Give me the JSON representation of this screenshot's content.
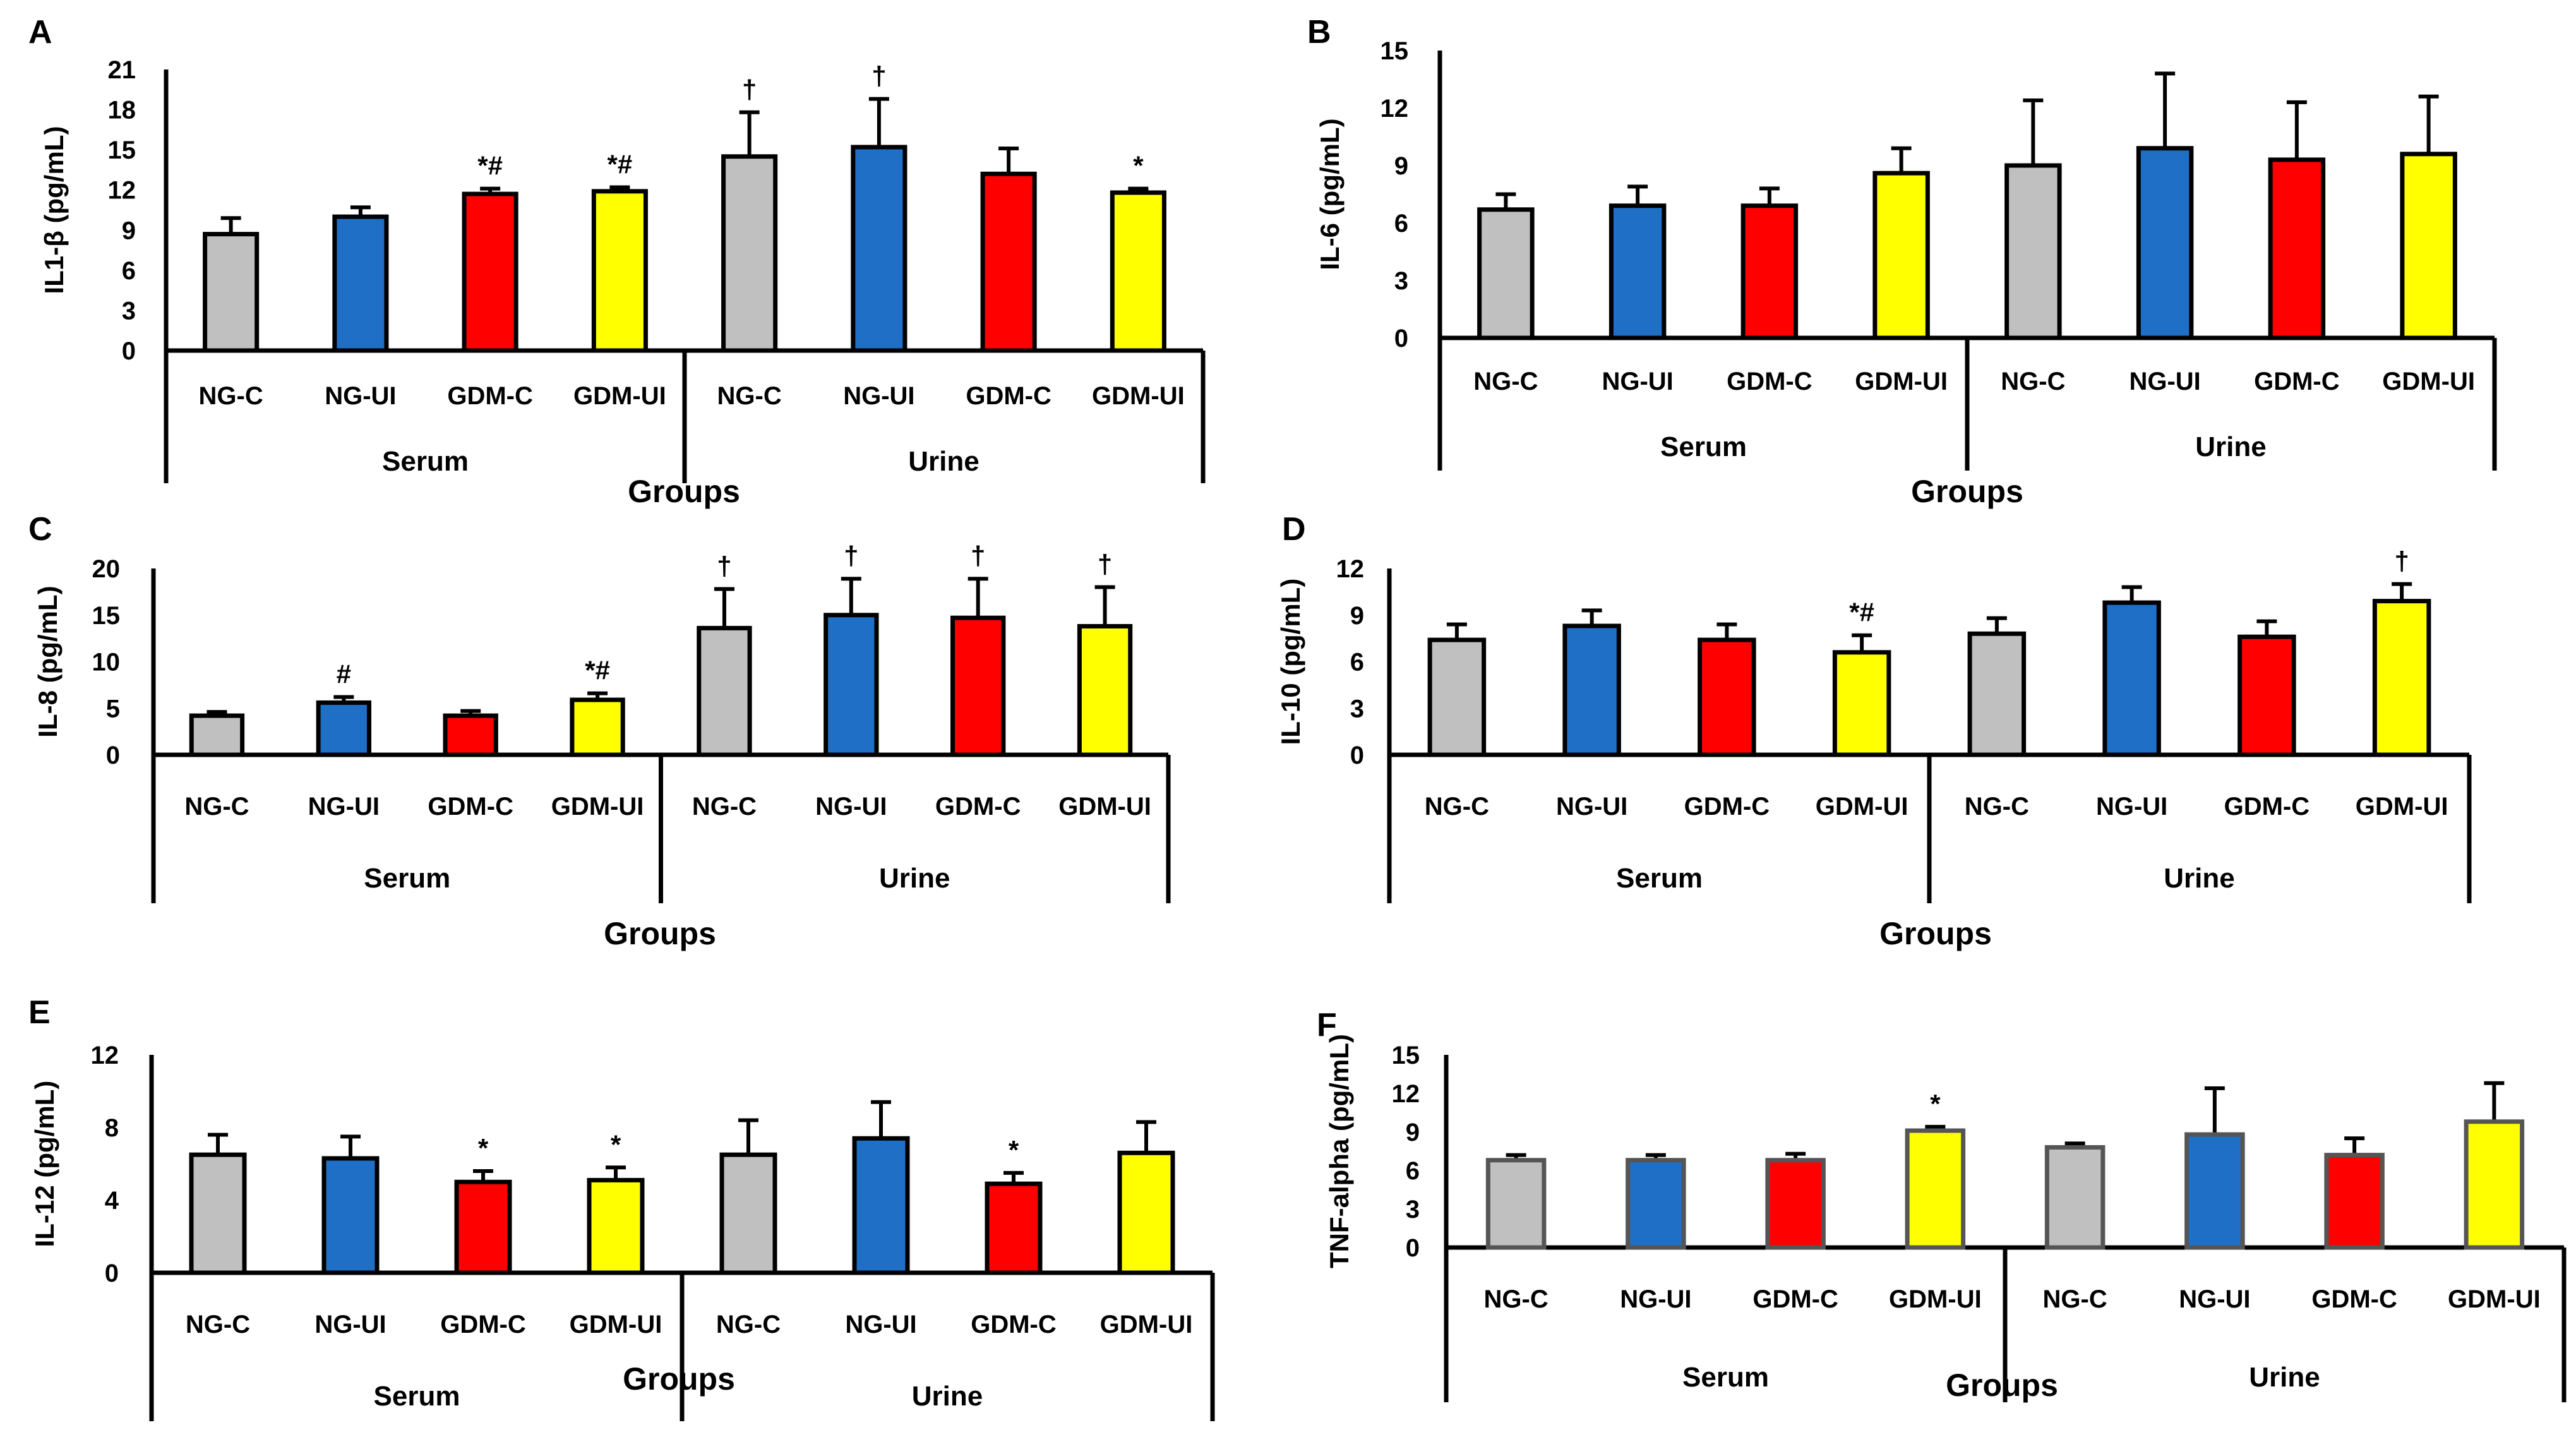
{
  "colors": {
    "NG-C": "#c0c0c0",
    "NG-UI": "#1f6fc6",
    "GDM-C": "#ff0000",
    "GDM-UI": "#ffff00"
  },
  "chart_data": [
    {
      "type": "bar",
      "panel": "A",
      "title": "",
      "xlabel": "Groups",
      "ylabel": "IL1-β (pg/mL)",
      "ylim": [
        0,
        21
      ],
      "yticks": [
        "0",
        "3",
        "6",
        "9",
        "12",
        "15",
        "18",
        "21"
      ],
      "groups": [
        "Serum",
        "Urine"
      ],
      "categories": [
        "NG-C",
        "NG-UI",
        "GDM-C",
        "GDM-UI",
        "NG-C",
        "NG-UI",
        "GDM-C",
        "GDM-UI"
      ],
      "values": [
        8.7,
        10.0,
        11.7,
        11.9,
        14.5,
        15.2,
        13.2,
        11.8
      ],
      "errors": [
        1.2,
        0.7,
        0.4,
        0.3,
        3.3,
        3.6,
        1.9,
        0.3
      ],
      "annotations": [
        "",
        "",
        "*#",
        "*#",
        "†",
        "†",
        "",
        "*"
      ]
    },
    {
      "type": "bar",
      "panel": "B",
      "title": "",
      "xlabel": "Groups",
      "ylabel": "IL-6 (pg/mL)",
      "ylim": [
        0,
        15
      ],
      "yticks": [
        "0",
        "3",
        "6",
        "9",
        "12",
        "15"
      ],
      "groups": [
        "Serum",
        "Urine"
      ],
      "categories": [
        "NG-C",
        "NG-UI",
        "GDM-C",
        "GDM-UI",
        "NG-C",
        "NG-UI",
        "GDM-C",
        "GDM-UI"
      ],
      "values": [
        6.7,
        6.9,
        6.9,
        8.6,
        9.0,
        9.9,
        9.3,
        9.6
      ],
      "errors": [
        0.8,
        1.0,
        0.9,
        1.3,
        3.4,
        3.9,
        3.0,
        3.0
      ],
      "annotations": [
        "",
        "",
        "",
        "",
        "",
        "",
        "",
        ""
      ]
    },
    {
      "type": "bar",
      "panel": "C",
      "title": "",
      "xlabel": "Groups",
      "ylabel": "IL-8 (pg/mL)",
      "ylim": [
        0,
        20
      ],
      "yticks": [
        "0",
        "5",
        "10",
        "15",
        "20"
      ],
      "groups": [
        "Serum",
        "Urine"
      ],
      "categories": [
        "NG-C",
        "NG-UI",
        "GDM-C",
        "GDM-UI",
        "NG-C",
        "NG-UI",
        "GDM-C",
        "GDM-UI"
      ],
      "values": [
        4.2,
        5.6,
        4.2,
        5.9,
        13.6,
        15.0,
        14.7,
        13.8
      ],
      "errors": [
        0.4,
        0.6,
        0.5,
        0.7,
        4.2,
        3.9,
        4.2,
        4.2
      ],
      "annotations": [
        "",
        "#",
        "",
        "*#",
        "†",
        "†",
        "†",
        "†"
      ]
    },
    {
      "type": "bar",
      "panel": "D",
      "title": "",
      "xlabel": "Groups",
      "ylabel": "IL-10 (pg/mL)",
      "ylim": [
        0,
        12
      ],
      "yticks": [
        "0",
        "3",
        "6",
        "9",
        "12"
      ],
      "groups": [
        "Serum",
        "Urine"
      ],
      "categories": [
        "NG-C",
        "NG-UI",
        "GDM-C",
        "GDM-UI",
        "NG-C",
        "NG-UI",
        "GDM-C",
        "GDM-UI"
      ],
      "values": [
        7.4,
        8.3,
        7.4,
        6.6,
        7.8,
        9.8,
        7.6,
        9.9
      ],
      "errors": [
        1.0,
        1.0,
        1.0,
        1.1,
        1.0,
        1.0,
        1.0,
        1.1
      ],
      "annotations": [
        "",
        "",
        "",
        "*#",
        "",
        "",
        "",
        "†"
      ]
    },
    {
      "type": "bar",
      "panel": "E",
      "title": "",
      "xlabel": "Groups",
      "ylabel": "IL-12 (pg/mL)",
      "ylim": [
        0,
        12
      ],
      "yticks": [
        "0",
        "4",
        "8",
        "12"
      ],
      "groups": [
        "Serum",
        "Urine"
      ],
      "categories": [
        "NG-C",
        "NG-UI",
        "GDM-C",
        "GDM-UI",
        "NG-C",
        "NG-UI",
        "GDM-C",
        "GDM-UI"
      ],
      "values": [
        6.5,
        6.3,
        5.0,
        5.1,
        6.5,
        7.4,
        4.9,
        6.6
      ],
      "errors": [
        1.1,
        1.2,
        0.6,
        0.7,
        1.9,
        2.0,
        0.6,
        1.7
      ],
      "annotations": [
        "",
        "",
        "*",
        "*",
        "",
        "",
        "*",
        ""
      ]
    },
    {
      "type": "bar",
      "panel": "F",
      "title": "",
      "xlabel": "Groups",
      "ylabel": "TNF-alpha (pg/mL)",
      "ylim": [
        0,
        15
      ],
      "yticks": [
        "0",
        "3",
        "6",
        "9",
        "12",
        "15"
      ],
      "groups": [
        "Serum",
        "Urine"
      ],
      "categories": [
        "NG-C",
        "NG-UI",
        "GDM-C",
        "GDM-UI",
        "NG-C",
        "NG-UI",
        "GDM-C",
        "GDM-UI"
      ],
      "values": [
        6.8,
        6.8,
        6.8,
        9.1,
        7.8,
        8.8,
        7.2,
        9.8
      ],
      "errors": [
        0.4,
        0.4,
        0.5,
        0.3,
        0.3,
        3.6,
        1.3,
        3.0
      ],
      "annotations": [
        "",
        "",
        "",
        "*",
        "",
        "",
        "",
        ""
      ]
    }
  ]
}
